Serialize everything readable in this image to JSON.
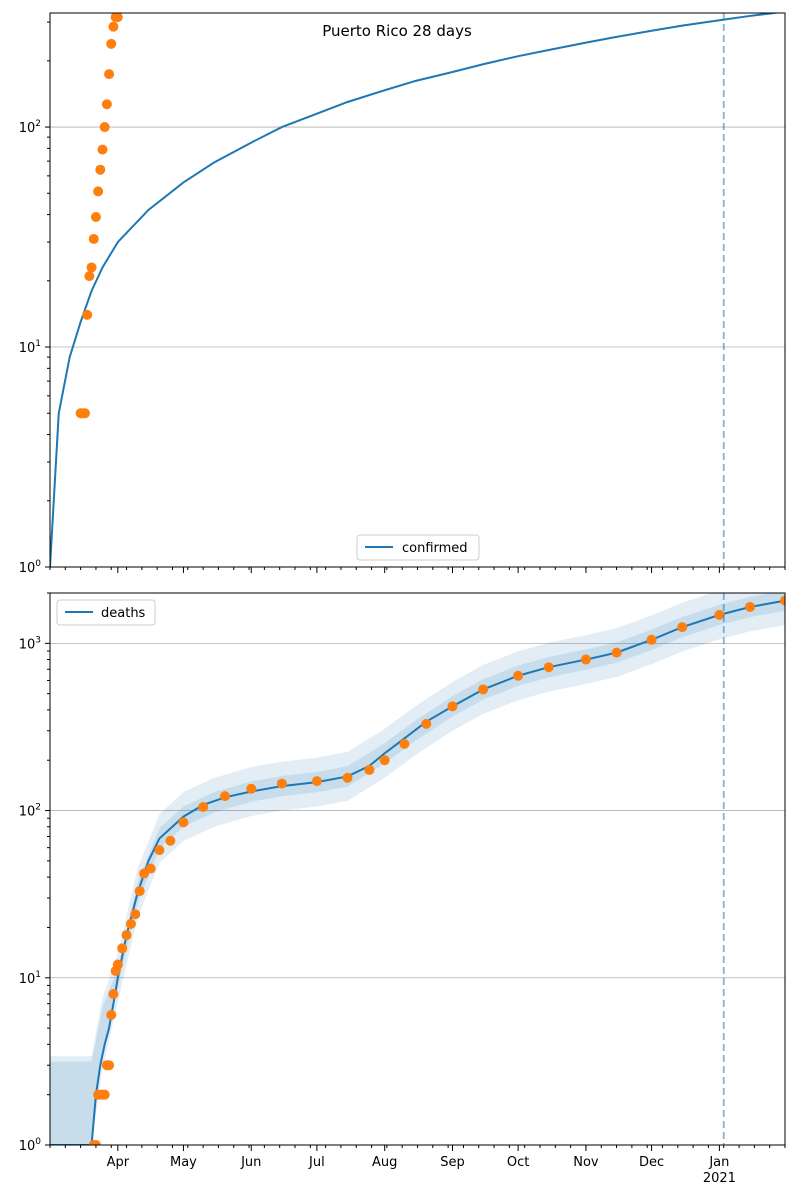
{
  "colors": {
    "model_line": "#1f77b4",
    "observed_points": "#ff7f0e",
    "band": "#1f77b4",
    "marker_line": "#1f77b4"
  },
  "chart_data": [
    {
      "type": "line",
      "title": "Puerto Rico 28 days",
      "yscale": "log",
      "ylim": [
        1,
        330
      ],
      "xlim": [
        "2020-03-01",
        "2021-01-31"
      ],
      "grid": "y-major",
      "legend": {
        "placement": "lower-center",
        "entries": [
          "confirmed"
        ]
      },
      "y_tick_labels": [
        "10^0",
        "10^1",
        "10^2"
      ],
      "series": [
        {
          "name": "confirmed",
          "kind": "line",
          "x": [
            "2020-03-01",
            "2020-03-05",
            "2020-03-10",
            "2020-03-15",
            "2020-03-20",
            "2020-03-25",
            "2020-04-01",
            "2020-04-15",
            "2020-05-01",
            "2020-05-15",
            "2020-06-01",
            "2020-06-15",
            "2020-07-01",
            "2020-07-15",
            "2020-08-01",
            "2020-08-15",
            "2020-09-01",
            "2020-09-15",
            "2020-10-01",
            "2020-10-15",
            "2020-11-01",
            "2020-11-15",
            "2020-12-01",
            "2020-12-15",
            "2021-01-01",
            "2021-01-15",
            "2021-01-31"
          ],
          "y": [
            1,
            5,
            9,
            13,
            18,
            23,
            30,
            42,
            56,
            69,
            85,
            100,
            115,
            130,
            147,
            162,
            178,
            193,
            210,
            224,
            242,
            257,
            274,
            289,
            306,
            320,
            335
          ]
        },
        {
          "kind": "scatter",
          "x": [
            "2020-03-15",
            "2020-03-16",
            "2020-03-17",
            "2020-03-18",
            "2020-03-19",
            "2020-03-20",
            "2020-03-21",
            "2020-03-22",
            "2020-03-23",
            "2020-03-24",
            "2020-03-25",
            "2020-03-26",
            "2020-03-27",
            "2020-03-28",
            "2020-03-29",
            "2020-03-30",
            "2020-03-31",
            "2020-04-01"
          ],
          "y": [
            5,
            5,
            5,
            14,
            21,
            23,
            31,
            39,
            51,
            64,
            79,
            100,
            127,
            174,
            239,
            286,
            316,
            316
          ]
        }
      ],
      "vline_x": "2021-01-03"
    },
    {
      "type": "line",
      "yscale": "log",
      "ylim": [
        1,
        2000
      ],
      "xlim": [
        "2020-03-01",
        "2021-01-31"
      ],
      "grid": "y-major",
      "legend": {
        "placement": "upper-left",
        "entries": [
          "deaths"
        ]
      },
      "y_tick_labels": [
        "10^0",
        "10^1",
        "10^2",
        "10^3"
      ],
      "x_tick_labels": [
        "Apr",
        "May",
        "Jun",
        "Jul",
        "Aug",
        "Sep",
        "Oct",
        "Nov",
        "Dec",
        "Jan",
        "2021"
      ],
      "series": [
        {
          "name": "deaths",
          "kind": "line",
          "x": [
            "2020-03-01",
            "2020-03-20",
            "2020-03-22",
            "2020-03-24",
            "2020-03-26",
            "2020-03-28",
            "2020-03-30",
            "2020-04-01",
            "2020-04-05",
            "2020-04-10",
            "2020-04-15",
            "2020-04-20",
            "2020-05-01",
            "2020-05-10",
            "2020-05-20",
            "2020-06-01",
            "2020-06-15",
            "2020-07-01",
            "2020-07-15",
            "2020-07-25",
            "2020-08-01",
            "2020-08-10",
            "2020-08-20",
            "2020-09-01",
            "2020-09-15",
            "2020-10-01",
            "2020-10-15",
            "2020-11-01",
            "2020-11-15",
            "2020-12-01",
            "2020-12-15",
            "2021-01-01",
            "2021-01-15",
            "2021-01-31"
          ],
          "y": [
            1,
            1,
            2,
            3,
            4,
            5,
            7,
            10,
            18,
            32,
            50,
            68,
            92,
            108,
            120,
            130,
            140,
            148,
            160,
            185,
            220,
            270,
            340,
            420,
            530,
            640,
            720,
            800,
            880,
            1050,
            1250,
            1480,
            1650,
            1800
          ]
        },
        {
          "kind": "scatter",
          "x": [
            "2020-03-21",
            "2020-03-22",
            "2020-03-23",
            "2020-03-24",
            "2020-03-25",
            "2020-03-26",
            "2020-03-27",
            "2020-03-28",
            "2020-03-29",
            "2020-03-30",
            "2020-03-31",
            "2020-04-01",
            "2020-04-03",
            "2020-04-05",
            "2020-04-07",
            "2020-04-09",
            "2020-04-11",
            "2020-04-13",
            "2020-04-16",
            "2020-04-20",
            "2020-04-25",
            "2020-05-01",
            "2020-05-10",
            "2020-05-20",
            "2020-06-01",
            "2020-06-15",
            "2020-07-01",
            "2020-07-15",
            "2020-07-25",
            "2020-08-01",
            "2020-08-10",
            "2020-08-20",
            "2020-09-01",
            "2020-09-15",
            "2020-10-01",
            "2020-10-15",
            "2020-11-01",
            "2020-11-15",
            "2020-12-01",
            "2020-12-15",
            "2021-01-01",
            "2021-01-15",
            "2021-01-31"
          ],
          "y": [
            1,
            1,
            2,
            2,
            2,
            2,
            3,
            3,
            6,
            8,
            11,
            12,
            15,
            18,
            21,
            24,
            33,
            42,
            45,
            58,
            66,
            85,
            105,
            122,
            135,
            145,
            150,
            157,
            175,
            200,
            250,
            330,
            420,
            530,
            640,
            720,
            800,
            880,
            1050,
            1250,
            1480,
            1650,
            1800
          ]
        }
      ],
      "band": {
        "x": [
          "2020-03-01",
          "2020-03-20",
          "2020-03-25",
          "2020-04-01",
          "2020-04-10",
          "2020-04-20",
          "2020-05-01",
          "2020-05-15",
          "2020-06-01",
          "2020-06-15",
          "2020-07-01",
          "2020-07-15",
          "2020-08-01",
          "2020-08-15",
          "2020-09-01",
          "2020-09-15",
          "2020-10-01",
          "2020-10-15",
          "2020-11-01",
          "2020-11-15",
          "2020-12-01",
          "2020-12-15",
          "2021-01-01",
          "2021-01-15",
          "2021-01-31"
        ],
        "center": [
          1,
          1,
          4,
          10,
          32,
          68,
          92,
          112,
          130,
          140,
          148,
          160,
          220,
          300,
          420,
          530,
          640,
          720,
          800,
          880,
          1050,
          1250,
          1480,
          1650,
          1800
        ],
        "inner_factor": 1.15,
        "outer_factor": 1.4
      },
      "vline_x": "2021-01-03"
    }
  ]
}
